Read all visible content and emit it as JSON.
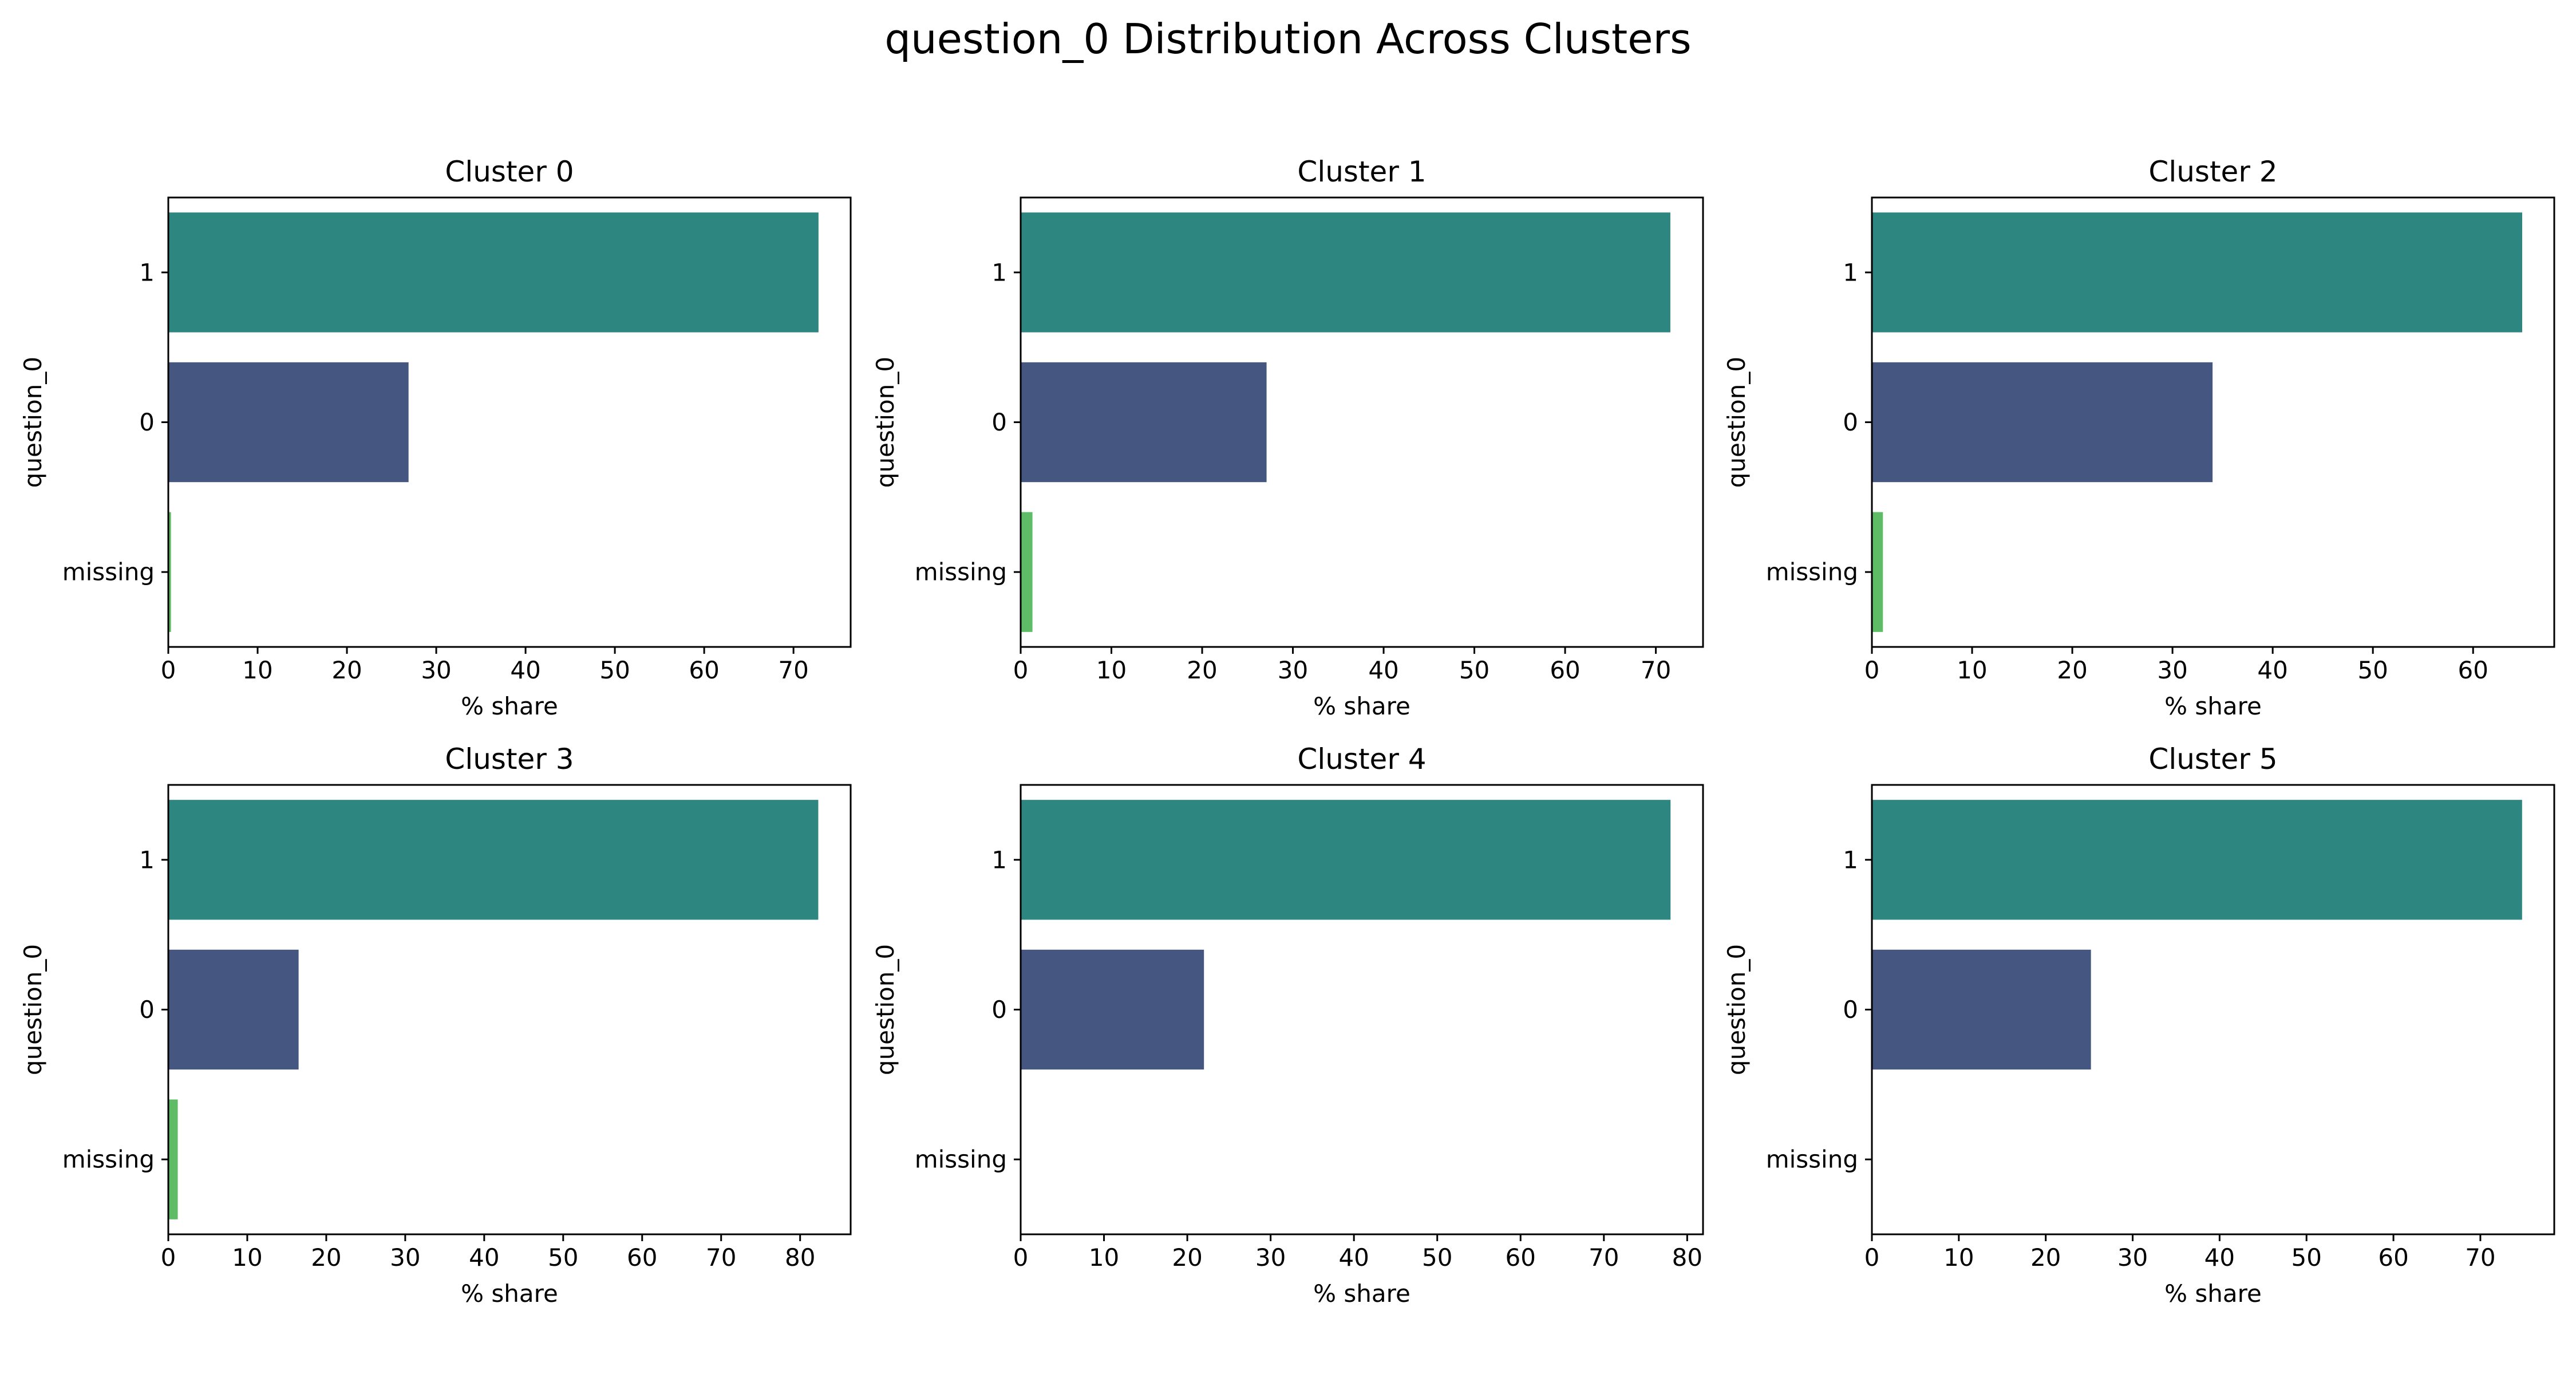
{
  "figure": {
    "title": "question_0 Distribution Across Clusters"
  },
  "chart_data": [
    {
      "type": "bar",
      "orientation": "horizontal",
      "title": "Cluster 0",
      "xlabel": "% share",
      "ylabel": "question_0",
      "categories": [
        "1",
        "0",
        "missing"
      ],
      "values": [
        72.8,
        26.9,
        0.3
      ],
      "colors": [
        "#2e8680",
        "#455781",
        "#5ebc66"
      ],
      "xlim": [
        0,
        76.4
      ],
      "xticks": [
        0,
        10,
        20,
        30,
        40,
        50,
        60,
        70
      ],
      "grid": false
    },
    {
      "type": "bar",
      "orientation": "horizontal",
      "title": "Cluster 1",
      "xlabel": "% share",
      "ylabel": "question_0",
      "categories": [
        "1",
        "0",
        "missing"
      ],
      "values": [
        71.6,
        27.1,
        1.3
      ],
      "colors": [
        "#2e8680",
        "#455781",
        "#5ebc66"
      ],
      "xlim": [
        0,
        75.2
      ],
      "xticks": [
        0,
        10,
        20,
        30,
        40,
        50,
        60,
        70
      ],
      "grid": false
    },
    {
      "type": "bar",
      "orientation": "horizontal",
      "title": "Cluster 2",
      "xlabel": "% share",
      "ylabel": "question_0",
      "categories": [
        "1",
        "0",
        "missing"
      ],
      "values": [
        64.9,
        34.0,
        1.1
      ],
      "colors": [
        "#2e8680",
        "#455781",
        "#5ebc66"
      ],
      "xlim": [
        0,
        68.1
      ],
      "xticks": [
        0,
        10,
        20,
        30,
        40,
        50,
        60
      ],
      "grid": false
    },
    {
      "type": "bar",
      "orientation": "horizontal",
      "title": "Cluster 3",
      "xlabel": "% share",
      "ylabel": "question_0",
      "categories": [
        "1",
        "0",
        "missing"
      ],
      "values": [
        82.3,
        16.5,
        1.2
      ],
      "colors": [
        "#2e8680",
        "#455781",
        "#5ebc66"
      ],
      "xlim": [
        0,
        86.4
      ],
      "xticks": [
        0,
        10,
        20,
        30,
        40,
        50,
        60,
        70,
        80
      ],
      "grid": false
    },
    {
      "type": "bar",
      "orientation": "horizontal",
      "title": "Cluster 4",
      "xlabel": "% share",
      "ylabel": "question_0",
      "categories": [
        "1",
        "0",
        "missing"
      ],
      "values": [
        78.0,
        22.0,
        0
      ],
      "colors": [
        "#2e8680",
        "#455781",
        "#5ebc66"
      ],
      "xlim": [
        0,
        81.9
      ],
      "xticks": [
        0,
        10,
        20,
        30,
        40,
        50,
        60,
        70,
        80
      ],
      "grid": false
    },
    {
      "type": "bar",
      "orientation": "horizontal",
      "title": "Cluster 5",
      "xlabel": "% share",
      "ylabel": "question_0",
      "categories": [
        "1",
        "0",
        "missing"
      ],
      "values": [
        74.8,
        25.2,
        0
      ],
      "colors": [
        "#2e8680",
        "#455781",
        "#5ebc66"
      ],
      "xlim": [
        0,
        78.5
      ],
      "xticks": [
        0,
        10,
        20,
        30,
        40,
        50,
        60,
        70
      ],
      "grid": false
    }
  ]
}
